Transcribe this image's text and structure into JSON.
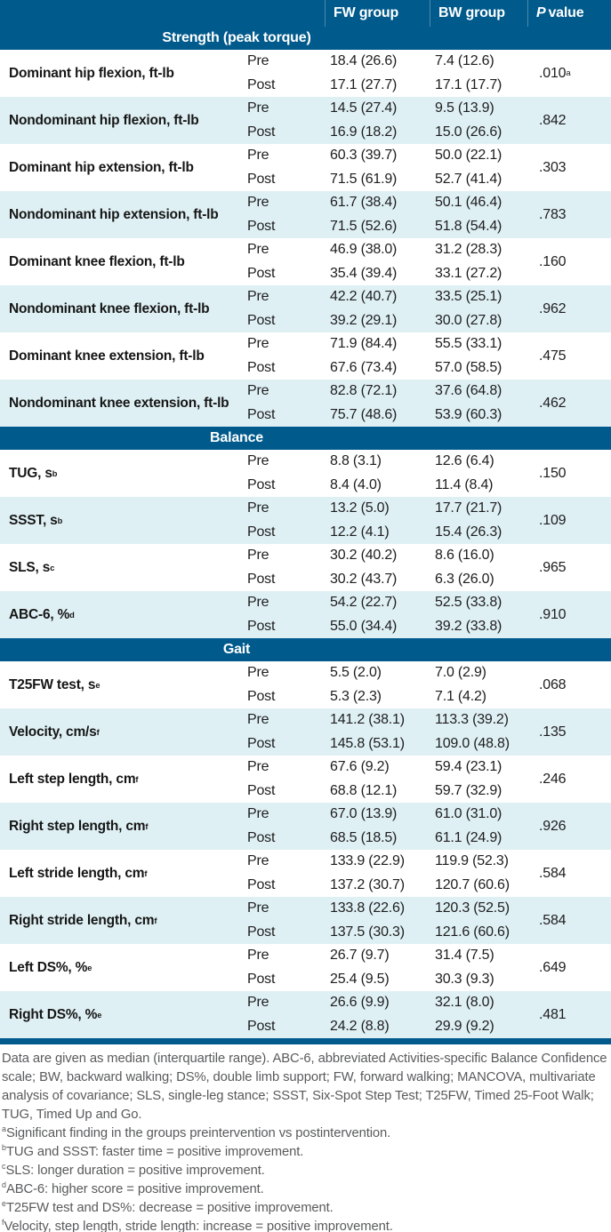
{
  "colors": {
    "header_blue": "#005A8C",
    "row_alt_blue": "#DFF0F4",
    "footnote_gray": "#595A5C"
  },
  "table": {
    "pre_label": "Pre",
    "post_label": "Post",
    "columns": {
      "fw": "FW group",
      "bw": "BW group",
      "p_italic": "P",
      "p_rest": "value"
    },
    "sections": [
      {
        "title": "Strength (peak torque)",
        "rows": [
          {
            "label": "Dominant hip flexion, ft-lb",
            "label_sup": "",
            "fw_pre": "18.4 (26.6)",
            "bw_pre": "7.4 (12.6)",
            "fw_post": "17.1 (27.7)",
            "bw_post": "17.1 (17.7)",
            "p": ".010",
            "p_sup": "a"
          },
          {
            "label": "Nondominant hip flexion, ft-lb",
            "label_sup": "",
            "fw_pre": "14.5 (27.4)",
            "bw_pre": "9.5 (13.9)",
            "fw_post": "16.9 (18.2)",
            "bw_post": "15.0 (26.6)",
            "p": ".842",
            "p_sup": ""
          },
          {
            "label": "Dominant hip extension, ft-lb",
            "label_sup": "",
            "fw_pre": "60.3 (39.7)",
            "bw_pre": "50.0 (22.1)",
            "fw_post": "71.5 (61.9)",
            "bw_post": "52.7 (41.4)",
            "p": ".303",
            "p_sup": ""
          },
          {
            "label": "Nondominant hip extension, ft-lb",
            "label_sup": "",
            "fw_pre": "61.7 (38.4)",
            "bw_pre": "50.1 (46.4)",
            "fw_post": "71.5 (52.6)",
            "bw_post": "51.8 (54.4)",
            "p": ".783",
            "p_sup": ""
          },
          {
            "label": "Dominant knee flexion, ft-lb",
            "label_sup": "",
            "fw_pre": "46.9 (38.0)",
            "bw_pre": "31.2 (28.3)",
            "fw_post": "35.4 (39.4)",
            "bw_post": "33.1 (27.2)",
            "p": ".160",
            "p_sup": ""
          },
          {
            "label": "Nondominant knee flexion, ft-lb",
            "label_sup": "",
            "fw_pre": "42.2 (40.7)",
            "bw_pre": "33.5 (25.1)",
            "fw_post": "39.2 (29.1)",
            "bw_post": "30.0 (27.8)",
            "p": ".962",
            "p_sup": ""
          },
          {
            "label": "Dominant knee extension, ft-lb",
            "label_sup": "",
            "fw_pre": "71.9 (84.4)",
            "bw_pre": "55.5 (33.1)",
            "fw_post": "67.6 (73.4)",
            "bw_post": "57.0 (58.5)",
            "p": ".475",
            "p_sup": ""
          },
          {
            "label": "Nondominant knee extension, ft-lb",
            "label_sup": "",
            "fw_pre": "82.8 (72.1)",
            "bw_pre": "37.6 (64.8)",
            "fw_post": "75.7 (48.6)",
            "bw_post": "53.9 (60.3)",
            "p": ".462",
            "p_sup": ""
          }
        ]
      },
      {
        "title": "Balance",
        "rows": [
          {
            "label": "TUG, s",
            "label_sup": "b",
            "fw_pre": "8.8 (3.1)",
            "bw_pre": "12.6 (6.4)",
            "fw_post": "8.4 (4.0)",
            "bw_post": "11.4 (8.4)",
            "p": ".150",
            "p_sup": ""
          },
          {
            "label": "SSST, s",
            "label_sup": "b",
            "fw_pre": "13.2 (5.0)",
            "bw_pre": "17.7 (21.7)",
            "fw_post": "12.2 (4.1)",
            "bw_post": "15.4 (26.3)",
            "p": ".109",
            "p_sup": ""
          },
          {
            "label": "SLS, s",
            "label_sup": "c",
            "fw_pre": "30.2 (40.2)",
            "bw_pre": "8.6 (16.0)",
            "fw_post": "30.2 (43.7)",
            "bw_post": "6.3 (26.0)",
            "p": ".965",
            "p_sup": ""
          },
          {
            "label": "ABC-6, %",
            "label_sup": "d",
            "fw_pre": "54.2 (22.7)",
            "bw_pre": "52.5 (33.8)",
            "fw_post": "55.0 (34.4)",
            "bw_post": "39.2 (33.8)",
            "p": ".910",
            "p_sup": ""
          }
        ]
      },
      {
        "title": "Gait",
        "rows": [
          {
            "label": "T25FW test, s",
            "label_sup": "e",
            "fw_pre": "5.5 (2.0)",
            "bw_pre": "7.0 (2.9)",
            "fw_post": "5.3 (2.3)",
            "bw_post": "7.1 (4.2)",
            "p": ".068",
            "p_sup": ""
          },
          {
            "label": "Velocity, cm/s",
            "label_sup": "f",
            "fw_pre": "141.2 (38.1)",
            "bw_pre": "113.3 (39.2)",
            "fw_post": "145.8 (53.1)",
            "bw_post": "109.0 (48.8)",
            "p": ".135",
            "p_sup": ""
          },
          {
            "label": "Left step length, cm",
            "label_sup": "f",
            "fw_pre": "67.6 (9.2)",
            "bw_pre": "59.4 (23.1)",
            "fw_post": "68.8 (12.1)",
            "bw_post": "59.7 (32.9)",
            "p": ".246",
            "p_sup": ""
          },
          {
            "label": "Right step length, cm",
            "label_sup": "f",
            "fw_pre": "67.0 (13.9)",
            "bw_pre": "61.0 (31.0)",
            "fw_post": "68.5 (18.5)",
            "bw_post": "61.1 (24.9)",
            "p": ".926",
            "p_sup": ""
          },
          {
            "label": "Left stride length, cm",
            "label_sup": "f",
            "fw_pre": "133.9 (22.9)",
            "bw_pre": "119.9 (52.3)",
            "fw_post": "137.2 (30.7)",
            "bw_post": "120.7 (60.6)",
            "p": ".584",
            "p_sup": ""
          },
          {
            "label": "Right stride length, cm",
            "label_sup": "f",
            "fw_pre": "133.8 (22.6)",
            "bw_pre": "120.3 (52.5)",
            "fw_post": "137.5 (30.3)",
            "bw_post": "121.6 (60.6)",
            "p": ".584",
            "p_sup": ""
          },
          {
            "label": "Left DS%, %",
            "label_sup": "e",
            "fw_pre": "26.7 (9.7)",
            "bw_pre": "31.4 (7.5)",
            "fw_post": "25.4 (9.5)",
            "bw_post": "30.3 (9.3)",
            "p": ".649",
            "p_sup": ""
          },
          {
            "label": "Right DS%, %",
            "label_sup": "e",
            "fw_pre": "26.6 (9.9)",
            "bw_pre": "32.1 (8.0)",
            "fw_post": "24.2 (8.8)",
            "bw_post": "29.9 (9.2)",
            "p": ".481",
            "p_sup": ""
          }
        ]
      }
    ]
  },
  "footnotes": {
    "general": "Data are given as median (interquartile range). ABC-6, abbreviated Activities-specific Balance Confidence scale; BW, backward walking; DS%, double limb support; FW, forward walking; MANCOVA, multivariate analysis of covariance; SLS, single-leg stance; SSST, Six-Spot Step Test; T25FW, Timed 25-Foot Walk; TUG, Timed Up and Go.",
    "notes": [
      {
        "sup": "a",
        "text": "Significant finding in the groups preintervention vs postintervention."
      },
      {
        "sup": "b",
        "text": "TUG and SSST: faster time = positive improvement."
      },
      {
        "sup": "c",
        "text": "SLS: longer duration = positive improvement."
      },
      {
        "sup": "d",
        "text": "ABC-6: higher score = positive improvement."
      },
      {
        "sup": "e",
        "text": "T25FW test and DS%: decrease = positive improvement."
      },
      {
        "sup": "f",
        "text": "Velocity, step length, stride length: increase = positive improvement."
      }
    ]
  }
}
